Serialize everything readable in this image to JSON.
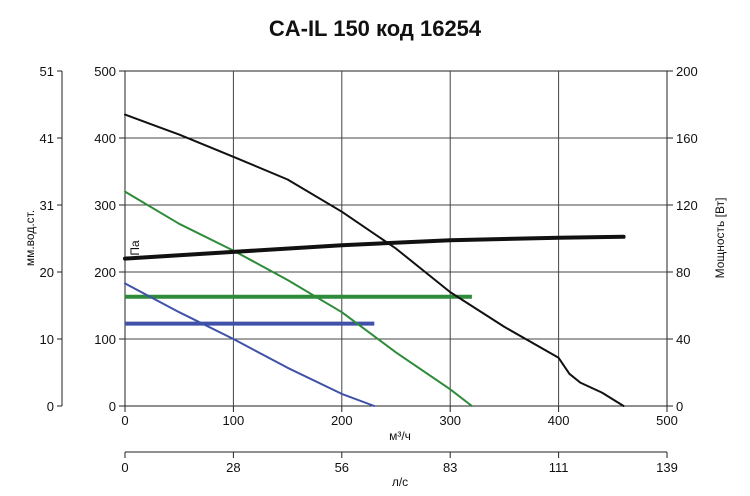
{
  "chart_data": {
    "type": "line",
    "title": "CA-IL 150 код 16254",
    "xlabel": "м³/ч",
    "xlabel_bottom": "л/с",
    "ylabel_left": "мм.вод.ст.",
    "ylabel_inner": "Па",
    "ylabel_right": "Мощность [Вт]",
    "xlim": [
      0,
      500
    ],
    "ylim": [
      0,
      500
    ],
    "y_right_lim": [
      0,
      200
    ],
    "grid": true,
    "x_ticks": [
      "0",
      "100",
      "200",
      "300",
      "400",
      "500"
    ],
    "y_ticks": [
      "0",
      "100",
      "200",
      "300",
      "400",
      "500"
    ],
    "y_right_ticks": [
      "0",
      "40",
      "80",
      "120",
      "160",
      "200"
    ],
    "y_left_ticks": [
      "0",
      "10",
      "20",
      "31",
      "41",
      "51"
    ],
    "x_bottom_ticks": [
      "0",
      "28",
      "56",
      "83",
      "111",
      "139"
    ],
    "series": [
      {
        "color": "#111111",
        "axis": "left",
        "x": [
          0,
          50,
          100,
          150,
          200,
          250,
          300,
          350,
          400,
          410,
          420,
          440,
          460
        ],
        "y": [
          435,
          405,
          372,
          338,
          290,
          235,
          170,
          118,
          72,
          48,
          35,
          20,
          0
        ]
      },
      {
        "color": "#2e8b3a",
        "axis": "left",
        "x": [
          0,
          50,
          100,
          150,
          200,
          250,
          300,
          320
        ],
        "y": [
          320,
          272,
          232,
          188,
          140,
          80,
          25,
          0
        ]
      },
      {
        "color": "#3f51a8",
        "axis": "left",
        "x": [
          0,
          50,
          100,
          150,
          200,
          230
        ],
        "y": [
          183,
          140,
          100,
          57,
          18,
          0
        ]
      },
      {
        "color": "#111111",
        "axis": "right",
        "x": [
          0,
          100,
          200,
          300,
          400,
          460
        ],
        "y": [
          88,
          92,
          96,
          99,
          100.5,
          101
        ]
      }
    ],
    "operating_lines": [
      {
        "color": "#2e8b3a",
        "x": [
          0,
          320
        ],
        "y": 163
      },
      {
        "color": "#3f51a8",
        "x": [
          0,
          230
        ],
        "y": 123
      }
    ]
  }
}
